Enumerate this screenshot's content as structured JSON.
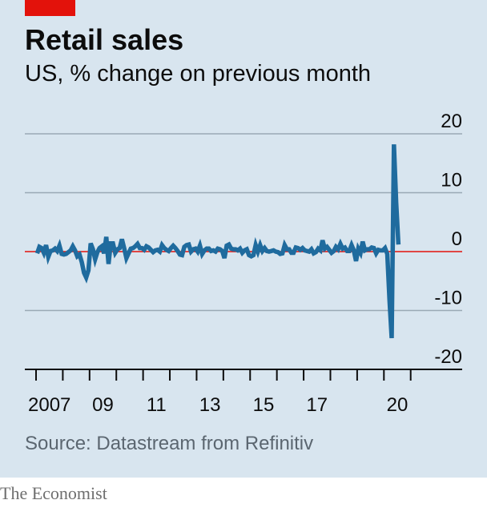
{
  "title": "Retail sales",
  "subtitle": "US, % change on previous month",
  "source": "Source: Datastream from Refinitiv",
  "brand": "The Economist",
  "colors": {
    "background": "#d8e5ef",
    "series": "#1f6b9e",
    "zero_line": "#e3120b",
    "grid": "#9aa9b5",
    "accent": "#e3120b"
  },
  "chart_data": {
    "type": "line",
    "title": "Retail sales",
    "subtitle": "US, % change on previous month",
    "xlabel": "",
    "ylabel": "",
    "ylim": [
      -20,
      20
    ],
    "yticks": [
      20,
      10,
      0,
      -10,
      -20
    ],
    "ytick_labels": [
      "20",
      "10",
      "0",
      "-10",
      "-20"
    ],
    "xtick_labels": [
      {
        "year": 2007,
        "label": "2007"
      },
      {
        "year": 2009,
        "label": "09"
      },
      {
        "year": 2011,
        "label": "11"
      },
      {
        "year": 2013,
        "label": "13"
      },
      {
        "year": 2015,
        "label": "15"
      },
      {
        "year": 2017,
        "label": "17"
      },
      {
        "year": 2020,
        "label": "20"
      }
    ],
    "year_ticks": [
      2007,
      2008,
      2009,
      2010,
      2011,
      2012,
      2013,
      2014,
      2015,
      2016,
      2017,
      2018,
      2019,
      2020,
      2021
    ],
    "xlim": [
      "2007-01",
      "2020-07"
    ],
    "grid": true,
    "series": [
      {
        "x": [
          "2007-01",
          "2007-02",
          "2007-03",
          "2007-04",
          "2007-05",
          "2007-06",
          "2007-07",
          "2007-08",
          "2007-09",
          "2007-10",
          "2007-11",
          "2007-12",
          "2008-01",
          "2008-02",
          "2008-03",
          "2008-04",
          "2008-05",
          "2008-06",
          "2008-07",
          "2008-08",
          "2008-09",
          "2008-10",
          "2008-11",
          "2008-12",
          "2009-01",
          "2009-02",
          "2009-03",
          "2009-04",
          "2009-05",
          "2009-06",
          "2009-07",
          "2009-08",
          "2009-09",
          "2009-10",
          "2009-11",
          "2009-12",
          "2010-01",
          "2010-02",
          "2010-03",
          "2010-04",
          "2010-05",
          "2010-06",
          "2010-07",
          "2010-08",
          "2010-09",
          "2010-10",
          "2010-11",
          "2010-12",
          "2011-01",
          "2011-02",
          "2011-03",
          "2011-04",
          "2011-05",
          "2011-06",
          "2011-07",
          "2011-08",
          "2011-09",
          "2011-10",
          "2011-11",
          "2011-12",
          "2012-01",
          "2012-02",
          "2012-03",
          "2012-04",
          "2012-05",
          "2012-06",
          "2012-07",
          "2012-08",
          "2012-09",
          "2012-10",
          "2012-11",
          "2012-12",
          "2013-01",
          "2013-02",
          "2013-03",
          "2013-04",
          "2013-05",
          "2013-06",
          "2013-07",
          "2013-08",
          "2013-09",
          "2013-10",
          "2013-11",
          "2013-12",
          "2014-01",
          "2014-02",
          "2014-03",
          "2014-04",
          "2014-05",
          "2014-06",
          "2014-07",
          "2014-08",
          "2014-09",
          "2014-10",
          "2014-11",
          "2014-12",
          "2015-01",
          "2015-02",
          "2015-03",
          "2015-04",
          "2015-05",
          "2015-06",
          "2015-07",
          "2015-08",
          "2015-09",
          "2015-10",
          "2015-11",
          "2015-12",
          "2016-01",
          "2016-02",
          "2016-03",
          "2016-04",
          "2016-05",
          "2016-06",
          "2016-07",
          "2016-08",
          "2016-09",
          "2016-10",
          "2016-11",
          "2016-12",
          "2017-01",
          "2017-02",
          "2017-03",
          "2017-04",
          "2017-05",
          "2017-06",
          "2017-07",
          "2017-08",
          "2017-09",
          "2017-10",
          "2017-11",
          "2017-12",
          "2018-01",
          "2018-02",
          "2018-03",
          "2018-04",
          "2018-05",
          "2018-06",
          "2018-07",
          "2018-08",
          "2018-09",
          "2018-10",
          "2018-11",
          "2018-12",
          "2019-01",
          "2019-02",
          "2019-03",
          "2019-04",
          "2019-05",
          "2019-06",
          "2019-07",
          "2019-08",
          "2019-09",
          "2019-10",
          "2019-11",
          "2019-12",
          "2020-01",
          "2020-02",
          "2020-03",
          "2020-04",
          "2020-05",
          "2020-06",
          "2020-07"
        ],
        "values": [
          -0.3,
          0.8,
          0.6,
          -0.2,
          1.1,
          -0.9,
          0.1,
          0.2,
          0.5,
          0.1,
          1.0,
          -0.4,
          -0.5,
          -0.4,
          -0.1,
          0.2,
          0.9,
          0.2,
          -0.8,
          -0.5,
          -1.8,
          -3.6,
          -4.4,
          -3.2,
          1.4,
          0.4,
          -1.3,
          -0.1,
          0.6,
          0.9,
          -0.3,
          2.5,
          -2.1,
          1.4,
          1.4,
          -0.2,
          0.4,
          0.6,
          2.1,
          0.6,
          -1.1,
          -0.3,
          0.5,
          0.6,
          0.9,
          1.3,
          0.6,
          0.6,
          0.3,
          0.9,
          0.7,
          0.3,
          -0.1,
          0.2,
          0.3,
          0.0,
          1.1,
          0.6,
          0.3,
          0.1,
          0.6,
          1.0,
          0.6,
          0.1,
          -0.5,
          -0.6,
          0.8,
          1.1,
          1.2,
          0.0,
          0.4,
          0.5,
          0.0,
          1.0,
          -0.4,
          0.2,
          0.5,
          0.5,
          0.1,
          0.2,
          0.0,
          0.5,
          0.4,
          0.1,
          -1.1,
          1.0,
          1.2,
          0.5,
          0.4,
          0.4,
          0.2,
          0.5,
          -0.2,
          0.2,
          0.4,
          -0.6,
          -0.8,
          -0.6,
          1.1,
          0.0,
          1.1,
          0.1,
          0.6,
          0.1,
          0.0,
          0.1,
          0.2,
          0.0,
          -0.1,
          -0.4,
          -0.3,
          1.1,
          0.4,
          0.4,
          -0.2,
          -0.2,
          0.7,
          0.6,
          0.3,
          0.6,
          0.2,
          0.1,
          0.0,
          0.4,
          -0.3,
          -0.1,
          0.5,
          0.2,
          1.9,
          0.5,
          0.8,
          0.3,
          -0.2,
          0.1,
          0.8,
          0.4,
          1.3,
          0.5,
          0.7,
          0.1,
          0.1,
          1.1,
          0.2,
          -1.6,
          0.5,
          -0.2,
          1.7,
          0.2,
          0.4,
          0.4,
          0.7,
          0.6,
          -0.3,
          0.3,
          0.2,
          0.2,
          0.6,
          -0.4,
          -8.3,
          -14.7,
          18.2,
          8.4,
          1.2
        ]
      }
    ]
  }
}
